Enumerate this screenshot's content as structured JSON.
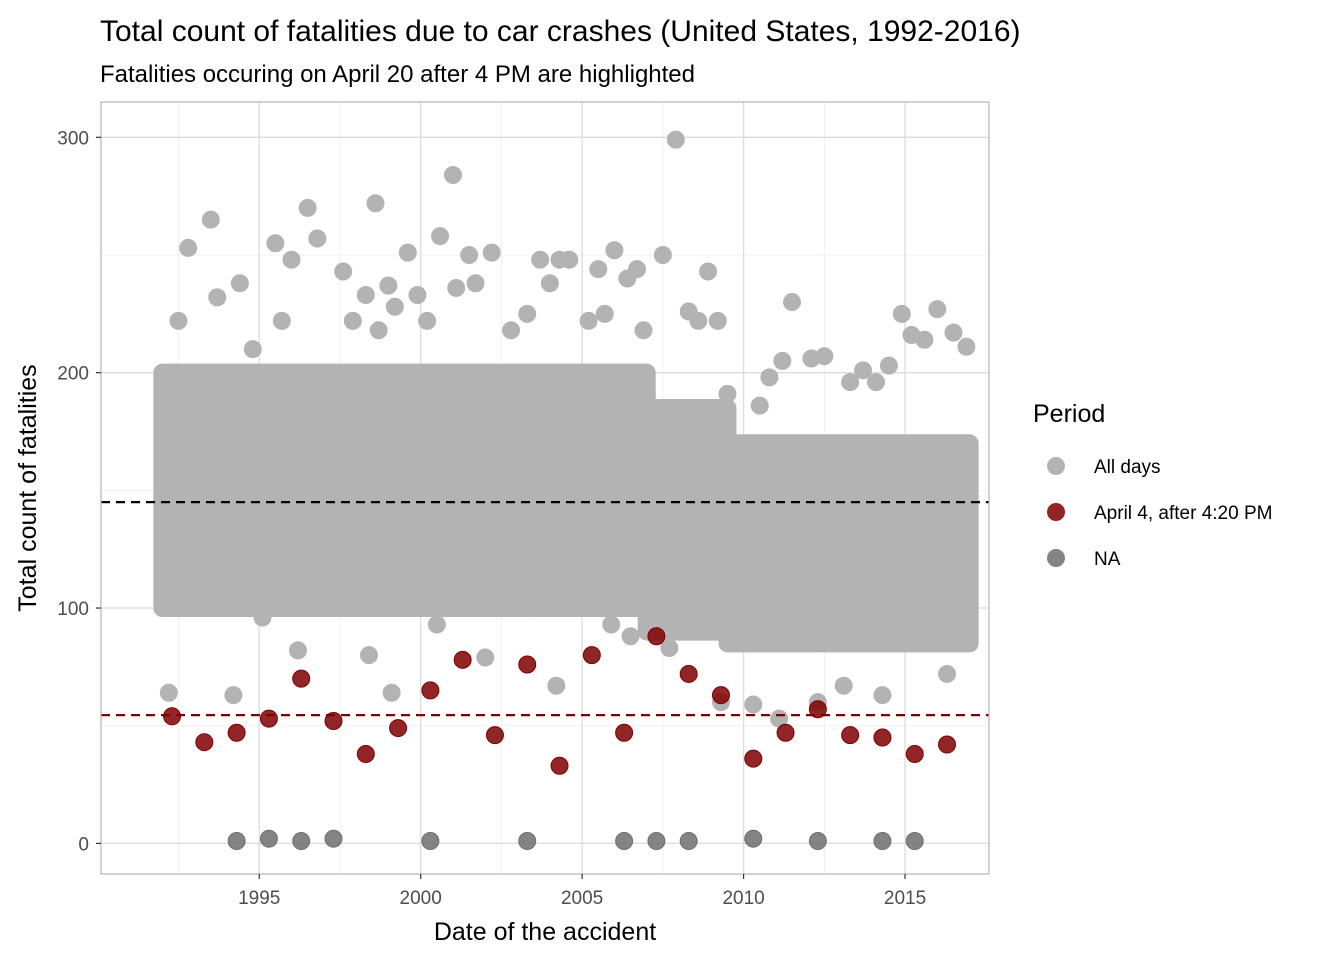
{
  "chart_data": {
    "type": "scatter",
    "title": "Total count of fatalities due to car crashes (United States, 1992-2016)",
    "subtitle": "Fatalities occuring on April 20 after 4 PM are highlighted",
    "xlabel": "Date of the accident",
    "ylabel": "Total count of fatalities",
    "xlim": [
      1990.1,
      2017.6
    ],
    "ylim": [
      -13,
      315
    ],
    "x_ticks": [
      1995,
      2000,
      2005,
      2010,
      2015
    ],
    "y_ticks": [
      0,
      100,
      200,
      300
    ],
    "grid": true,
    "legend_placement": "right",
    "legend": {
      "title": "Period",
      "entries": [
        {
          "label": "All days",
          "color": "#b3b3b3"
        },
        {
          "label": "April 4, after 4:20 PM",
          "color": "#7f0000"
        },
        {
          "label": "NA",
          "color": "#6e6e6e"
        }
      ]
    },
    "reference_lines": [
      {
        "y": 145,
        "color": "#000000",
        "style": "dashed"
      },
      {
        "y": 54.5,
        "color": "#7f0000",
        "style": "dashed"
      }
    ],
    "series": [
      {
        "name": "All days",
        "color": "#b3b3b3",
        "x": [
          1992.0,
          1992.5,
          1992.8,
          1993.3,
          1993.5,
          1993.7,
          1994.4,
          1994.8,
          1995.5,
          1995.7,
          1996.0,
          1996.5,
          1996.8,
          1997.6,
          1997.9,
          1998.3,
          1998.6,
          1998.7,
          1999.0,
          1999.2,
          1999.6,
          1999.9,
          2000.2,
          2000.6,
          2001.0,
          2001.1,
          2001.5,
          2001.7,
          2002.2,
          2002.8,
          2003.3,
          2003.7,
          2004.0,
          2004.3,
          2004.6,
          2005.2,
          2005.5,
          2005.7,
          2006.0,
          2006.4,
          2006.7,
          2006.9,
          2007.5,
          2007.9,
          2008.3,
          2008.6,
          2008.9,
          2009.2,
          2009.5,
          2010.5,
          2010.8,
          2011.2,
          2011.5,
          2012.1,
          2012.5,
          2013.3,
          2013.7,
          2014.1,
          2014.5,
          2014.9,
          2015.2,
          2015.6,
          2016.0,
          2016.5,
          2016.9,
          1992.2,
          1994.2,
          1995.1,
          1996.2,
          1998.4,
          1999.1,
          2000.5,
          2002.0,
          2004.2,
          2005.9,
          2007.7,
          2009.3,
          2010.3,
          2011.1,
          2012.3,
          2013.1,
          2014.3,
          2016.3,
          2003.5,
          2006.5
        ],
        "values": [
          182,
          222,
          253,
          178,
          265,
          232,
          238,
          210,
          255,
          222,
          248,
          270,
          257,
          243,
          222,
          233,
          272,
          218,
          237,
          228,
          251,
          233,
          222,
          258,
          284,
          236,
          250,
          238,
          251,
          218,
          225,
          248,
          238,
          248,
          248,
          222,
          244,
          225,
          252,
          240,
          244,
          218,
          250,
          299,
          226,
          222,
          243,
          222,
          191,
          186,
          198,
          205,
          230,
          206,
          207,
          196,
          201,
          196,
          203,
          225,
          216,
          214,
          227,
          217,
          211,
          64,
          63,
          96,
          82,
          80,
          64,
          93,
          79,
          67,
          93,
          83,
          60,
          59,
          53,
          60,
          67,
          63,
          72,
          100,
          88
        ]
      },
      {
        "name": "April 4, after 4:20 PM",
        "color": "#7f0000",
        "x": [
          1992.3,
          1993.3,
          1994.3,
          1995.3,
          1996.3,
          1997.3,
          1998.3,
          1999.3,
          2000.3,
          2001.3,
          2002.3,
          2003.3,
          2004.3,
          2005.3,
          2006.3,
          2007.3,
          2008.3,
          2009.3,
          2010.3,
          2011.3,
          2012.3,
          2013.3,
          2014.3,
          2015.3,
          2016.3
        ],
        "values": [
          54,
          43,
          47,
          53,
          70,
          52,
          38,
          49,
          65,
          78,
          46,
          76,
          33,
          80,
          47,
          88,
          72,
          63,
          36,
          47,
          57,
          46,
          45,
          38,
          42
        ]
      },
      {
        "name": "NA",
        "color": "#6e6e6e",
        "x": [
          1994.3,
          1995.3,
          1996.3,
          1997.3,
          2000.3,
          2003.3,
          2006.3,
          2007.3,
          2008.3,
          2010.3,
          2012.3,
          2014.3,
          2015.3
        ],
        "values": [
          1,
          2,
          1,
          2,
          1,
          1,
          1,
          1,
          1,
          2,
          1,
          1,
          1
        ]
      }
    ],
    "background_band": {
      "series": "All days",
      "description_segments": [
        {
          "x_from": 1992.0,
          "x_to": 2007.0,
          "y_low": 100,
          "y_high": 200
        },
        {
          "x_from": 2007.0,
          "x_to": 2009.5,
          "y_low": 90,
          "y_high": 185
        },
        {
          "x_from": 2009.5,
          "x_to": 2017.0,
          "y_low": 85,
          "y_high": 170
        }
      ]
    }
  }
}
